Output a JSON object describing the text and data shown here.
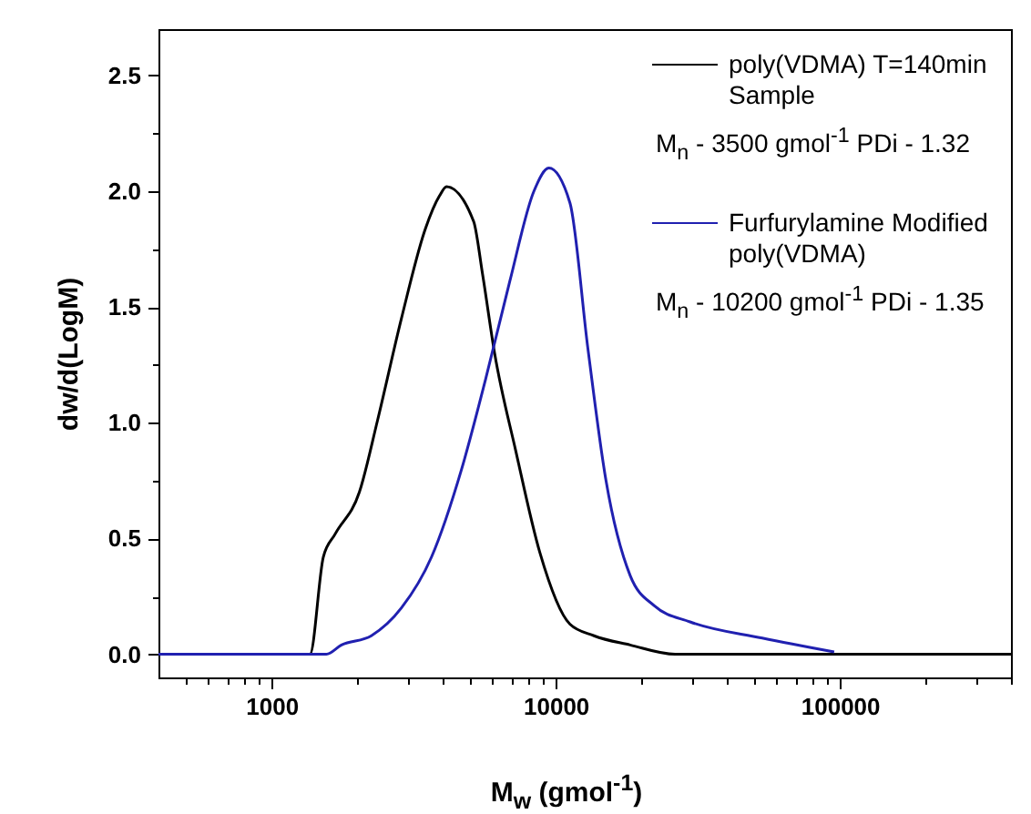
{
  "chart_data": {
    "type": "line",
    "xlabel": "M$_{w}$ (gmol$^{-1}$)",
    "ylabel": "dw/d(LogM)",
    "log": "x",
    "legend": "top right",
    "grid": false,
    "xlim": [
      400,
      400000
    ],
    "xticks": [
      {
        "value": 500,
        "label": null
      },
      {
        "value": 600,
        "label": null
      },
      {
        "value": 700,
        "label": null
      },
      {
        "value": 800,
        "label": null
      },
      {
        "value": 900,
        "label": null
      },
      1000,
      {
        "value": 2000,
        "label": null
      },
      {
        "value": 3000,
        "label": null
      },
      {
        "value": 4000,
        "label": null
      },
      {
        "value": 5000,
        "label": null
      },
      {
        "value": 6000,
        "label": null
      },
      {
        "value": 7000,
        "label": null
      },
      {
        "value": 8000,
        "label": null
      },
      {
        "value": 9000,
        "label": null
      },
      10000,
      {
        "value": 20000,
        "label": null
      },
      {
        "value": 30000,
        "label": null
      },
      {
        "value": 40000,
        "label": null
      },
      {
        "value": 50000,
        "label": null
      },
      {
        "value": 60000,
        "label": null
      },
      {
        "value": 70000,
        "label": null
      },
      {
        "value": 80000,
        "label": null
      },
      {
        "value": 90000,
        "label": null
      },
      100000,
      {
        "value": 200000,
        "label": null
      },
      {
        "value": 300000,
        "label": null
      },
      {
        "value": 400000,
        "label": null
      }
    ],
    "ylim": [
      -0.1,
      2.7
    ],
    "yticks": [
      {
        "value": 0,
        "label": "0.0"
      },
      {
        "value": 0.25,
        "label": null
      },
      {
        "value": 0.5,
        "label": "0.5"
      },
      {
        "value": 0.75,
        "label": null
      },
      {
        "value": 1,
        "label": "1.0"
      },
      {
        "value": 1.25,
        "label": null
      },
      {
        "value": 1.5,
        "label": "1.5"
      },
      {
        "value": 1.75,
        "label": null
      },
      {
        "value": 2,
        "label": "2.0"
      },
      {
        "value": 2.25,
        "label": null
      },
      {
        "value": 2.5,
        "label": "2.5"
      }
    ],
    "series": [
      {
        "name": "poly(VDMA) T=140min Sample",
        "color": "#000000",
        "x": [
          400,
          1365,
          1521,
          1675,
          2037,
          2360,
          2864,
          3483,
          3900,
          4130,
          5140,
          5530,
          6095,
          7230,
          8790,
          11220,
          13640,
          18280,
          26300,
          400000
        ],
        "values": [
          0,
          0,
          0.42,
          0.52,
          0.7,
          1.01,
          1.45,
          1.84,
          1.98,
          2.02,
          1.87,
          1.64,
          1.3,
          0.88,
          0.44,
          0.13,
          0.08,
          0.04,
          0,
          0
        ]
      },
      {
        "name": "Furfurylamine Modified poly(VDMA)",
        "color": "#2020b0",
        "x": [
          400,
          1559,
          1762,
          2245,
          2864,
          3655,
          4666,
          5672,
          6890,
          8380,
          9460,
          11220,
          12980,
          15030,
          18280,
          22200,
          29700,
          53300,
          95500
        ],
        "values": [
          0,
          0,
          0.04,
          0.08,
          0.2,
          0.42,
          0.8,
          1.19,
          1.61,
          2.0,
          2.1,
          1.95,
          1.32,
          0.75,
          0.34,
          0.21,
          0.14,
          0.07,
          0.01
        ]
      }
    ],
    "annotations": [
      "M$_{n}$ - 3500 gmol$^{-1}$ PDi - 1.32",
      "M$_{n}$ - 10200 gmol$^{-1}$ PDi - 1.35"
    ]
  }
}
